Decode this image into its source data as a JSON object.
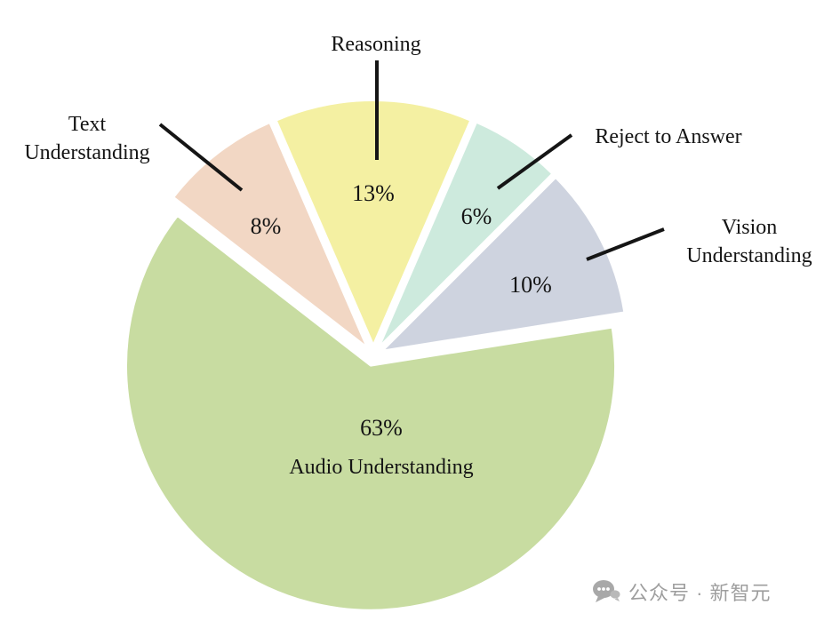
{
  "chart_data": {
    "type": "pie",
    "title": "",
    "start_angle_deg": -23.4,
    "exploded": true,
    "legend_position": "none",
    "labels_on_chart": true,
    "slices": [
      {
        "id": "reasoning",
        "label": "Reasoning",
        "value": 13,
        "pct_label": "13%",
        "color": "#f4f0a2"
      },
      {
        "id": "reject-to-answer",
        "label": "Reject to Answer",
        "value": 6,
        "pct_label": "6%",
        "color": "#cdeadd"
      },
      {
        "id": "vision-understanding",
        "label": "Vision Understanding",
        "value": 10,
        "pct_label": "10%",
        "color": "#ced3df"
      },
      {
        "id": "audio-understanding",
        "label": "Audio Understanding",
        "value": 63,
        "pct_label": "63%",
        "color": "#c8dca1"
      },
      {
        "id": "text-understanding",
        "label": "Text Understanding",
        "value": 8,
        "pct_label": "8%",
        "color": "#f2d7c4"
      }
    ]
  },
  "watermark": {
    "text": "公众号 · 新智元",
    "icon": "chat-bubble-icon"
  }
}
